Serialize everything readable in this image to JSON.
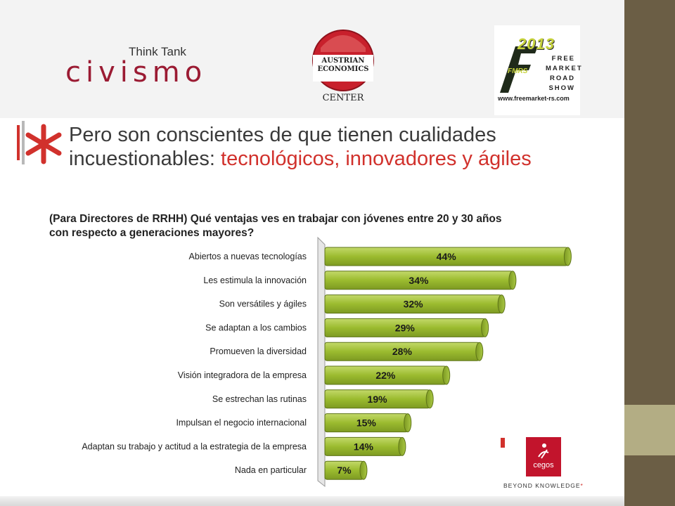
{
  "logos": {
    "civismo_tagline": "Think Tank",
    "civismo_name": "civismo",
    "aec_line1": "AUSTRIAN",
    "aec_line2": "ECONOMICS",
    "aec_line3": "CENTER",
    "fmrs_year": "2013",
    "fmrs_words": [
      "FREE",
      "MARKET",
      "ROAD",
      "SHOW"
    ],
    "fmrs_mark": "FMRS",
    "fmrs_url": "www.freemarket-rs.com",
    "cegos_name": "cegos",
    "cegos_tagline": "BEYOND KNOWLEDGE",
    "cegos_star": "*"
  },
  "heading": {
    "line1": "Pero son conscientes de que tienen cualidades",
    "line2_plain": "incuestionables: ",
    "line2_accent": "tecnológicos, innovadores y ágiles"
  },
  "question": {
    "line1": "(Para Directores de RRHH) Qué ventajas ves en trabajar con jóvenes entre 20 y 30 años",
    "line2": "con respecto a generaciones mayores?"
  },
  "colors": {
    "bar_fill": "#9bbb2f",
    "bar_light": "#c3d96a",
    "accent_red": "#d1312c",
    "brand_maroon": "#9b1b33",
    "side_dark": "#6b5e45",
    "side_light": "#b3ad84"
  },
  "chart_data": {
    "type": "bar",
    "orientation": "horizontal",
    "categories": [
      "Abiertos a nuevas tecnologías",
      "Les estimula la innovación",
      "Son versátiles y ágiles",
      "Se adaptan a los cambios",
      "Promueven la diversidad",
      "Visión integradora de la empresa",
      "Se estrechan las rutinas",
      "Impulsan el negocio internacional",
      "Adaptan su trabajo y actitud a la estrategia de la empresa",
      "Nada en particular"
    ],
    "values": [
      44,
      34,
      32,
      29,
      28,
      22,
      19,
      15,
      14,
      7
    ],
    "value_labels": [
      "44%",
      "34%",
      "32%",
      "29%",
      "28%",
      "22%",
      "19%",
      "15%",
      "14%",
      "7%"
    ],
    "unit": "%"
  }
}
